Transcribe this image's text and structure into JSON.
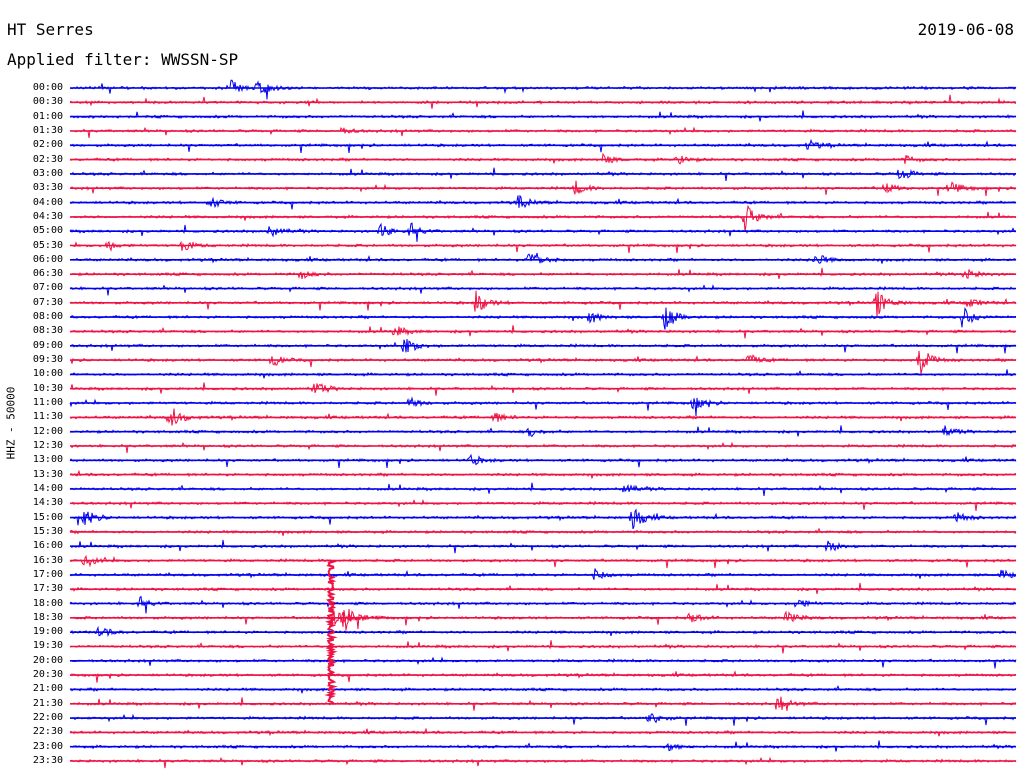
{
  "header": {
    "station": "HT Serres",
    "date": "2019-06-08",
    "filter_prefix": "Applied filter: ",
    "filter": "WWSSN-SP"
  },
  "axis": {
    "ylabel": "HHZ - 50000"
  },
  "colors": {
    "even_row": "#0000ee",
    "odd_row": "#ee1144",
    "background": "#ffffff",
    "text": "#000000"
  },
  "rows": [
    {
      "time": "00:00",
      "events": [
        [
          230,
          8
        ],
        [
          258,
          12
        ],
        [
          0.3,
          0.3
        ]
      ]
    },
    {
      "time": "00:30",
      "events": []
    },
    {
      "time": "01:00",
      "events": []
    },
    {
      "time": "01:30",
      "events": [
        [
          340,
          4
        ]
      ]
    },
    {
      "time": "02:00",
      "events": [
        [
          808,
          5
        ]
      ]
    },
    {
      "time": "02:30",
      "events": [
        [
          603,
          5
        ],
        [
          677,
          5
        ],
        [
          905,
          4
        ]
      ]
    },
    {
      "time": "03:00",
      "events": [
        [
          900,
          7
        ]
      ]
    },
    {
      "time": "03:30",
      "events": [
        [
          575,
          7
        ],
        [
          885,
          6
        ],
        [
          950,
          8
        ]
      ]
    },
    {
      "time": "04:00",
      "events": [
        [
          210,
          6
        ],
        [
          518,
          7
        ]
      ]
    },
    {
      "time": "04:30",
      "events": [
        [
          745,
          14
        ]
      ]
    },
    {
      "time": "05:00",
      "events": [
        [
          380,
          8
        ],
        [
          410,
          8
        ],
        [
          270,
          6
        ]
      ]
    },
    {
      "time": "05:30",
      "events": [
        [
          182,
          6
        ],
        [
          108,
          5
        ]
      ]
    },
    {
      "time": "06:00",
      "events": [
        [
          530,
          14
        ],
        [
          815,
          7
        ]
      ]
    },
    {
      "time": "06:30",
      "events": [
        [
          300,
          5
        ],
        [
          965,
          6
        ]
      ]
    },
    {
      "time": "07:00",
      "events": []
    },
    {
      "time": "07:30",
      "events": [
        [
          476,
          12
        ],
        [
          877,
          14
        ],
        [
          968,
          6
        ]
      ]
    },
    {
      "time": "08:00",
      "events": [
        [
          665,
          12
        ],
        [
          962,
          12
        ],
        [
          590,
          6
        ]
      ]
    },
    {
      "time": "08:30",
      "events": [
        [
          395,
          6
        ]
      ]
    },
    {
      "time": "09:00",
      "events": [
        [
          405,
          10
        ]
      ]
    },
    {
      "time": "09:30",
      "events": [
        [
          920,
          14
        ],
        [
          272,
          6
        ],
        [
          748,
          6
        ]
      ]
    },
    {
      "time": "10:00",
      "events": []
    },
    {
      "time": "10:30",
      "events": [
        [
          315,
          8
        ]
      ]
    },
    {
      "time": "11:00",
      "events": [
        [
          693,
          8
        ],
        [
          410,
          5
        ]
      ]
    },
    {
      "time": "11:30",
      "events": [
        [
          170,
          12
        ],
        [
          493,
          6
        ]
      ]
    },
    {
      "time": "12:00",
      "events": [
        [
          945,
          5
        ],
        [
          530,
          5
        ]
      ]
    },
    {
      "time": "12:30",
      "events": []
    },
    {
      "time": "13:00",
      "events": [
        [
          470,
          6
        ]
      ]
    },
    {
      "time": "13:30",
      "events": []
    },
    {
      "time": "14:00",
      "events": [
        [
          625,
          5
        ]
      ]
    },
    {
      "time": "14:30",
      "events": []
    },
    {
      "time": "15:00",
      "events": [
        [
          633,
          12
        ],
        [
          85,
          8
        ],
        [
          957,
          6
        ]
      ]
    },
    {
      "time": "15:30",
      "events": []
    },
    {
      "time": "16:00",
      "events": [
        [
          828,
          6
        ]
      ]
    },
    {
      "time": "16:30",
      "events": [
        [
          85,
          6
        ]
      ]
    },
    {
      "time": "17:00",
      "events": [
        [
          595,
          6
        ],
        [
          1000,
          6
        ]
      ]
    },
    {
      "time": "17:30",
      "events": []
    },
    {
      "time": "18:00",
      "events": [
        [
          140,
          6
        ],
        [
          797,
          6
        ]
      ]
    },
    {
      "time": "18:30",
      "events": [
        [
          345,
          16
        ],
        [
          787,
          7
        ],
        [
          690,
          6
        ]
      ]
    },
    {
      "time": "19:00",
      "events": [
        [
          100,
          5
        ]
      ]
    },
    {
      "time": "19:30",
      "events": []
    },
    {
      "time": "20:00",
      "events": []
    },
    {
      "time": "20:30",
      "events": []
    },
    {
      "time": "21:00",
      "events": []
    },
    {
      "time": "21:30",
      "events": [
        [
          778,
          9
        ]
      ]
    },
    {
      "time": "22:00",
      "events": [
        [
          650,
          7
        ]
      ]
    },
    {
      "time": "22:30",
      "events": []
    },
    {
      "time": "23:00",
      "events": [
        [
          668,
          5
        ]
      ]
    },
    {
      "time": "23:30",
      "events": []
    }
  ],
  "big_quake": {
    "start_time": "16:30",
    "x": 331
  }
}
